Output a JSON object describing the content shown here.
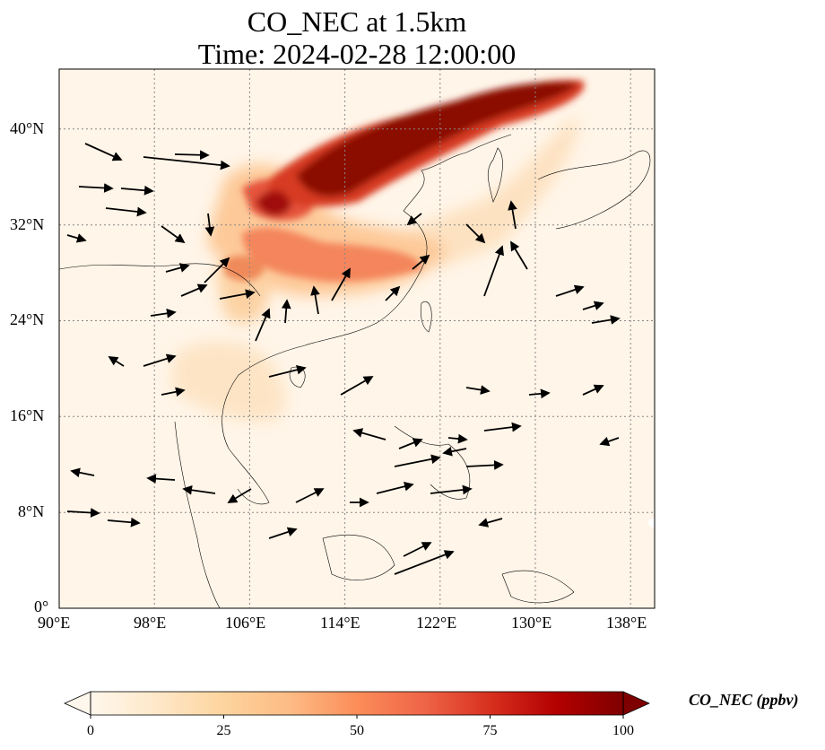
{
  "title": {
    "line1": "CO_NEC at 1.5km",
    "line2": "Time: 2024-02-28 12:00:00"
  },
  "map": {
    "region": "East Asia / Southeast Asia",
    "lon_range": [
      90,
      140
    ],
    "lat_range": [
      0,
      45
    ],
    "variable": "CO_NEC",
    "level": "1.5km",
    "gridlines": true,
    "wind_vectors": true,
    "lon_ticks": [
      "90°E",
      "98°E",
      "106°E",
      "114°E",
      "122°E",
      "130°E",
      "138°E"
    ],
    "lat_ticks": [
      "0°",
      "8°N",
      "16°N",
      "24°N",
      "32°N",
      "40°N"
    ],
    "lon_tick_values": [
      90,
      98,
      106,
      114,
      122,
      130,
      138
    ],
    "lat_tick_values": [
      0,
      8,
      16,
      24,
      32,
      40
    ]
  },
  "colorbar": {
    "label": "CO_NEC (ppbv)",
    "ticks": [
      "0",
      "25",
      "50",
      "75",
      "100"
    ],
    "tick_values": [
      0,
      25,
      50,
      75,
      100
    ],
    "range": [
      0,
      100
    ],
    "extend": "both",
    "colormap": "OrRd",
    "colors": [
      "#fff7ec",
      "#fee8c8",
      "#fdd49e",
      "#fdbb84",
      "#fc8d59",
      "#ef6548",
      "#d7301f",
      "#b30000",
      "#7f0000"
    ]
  }
}
